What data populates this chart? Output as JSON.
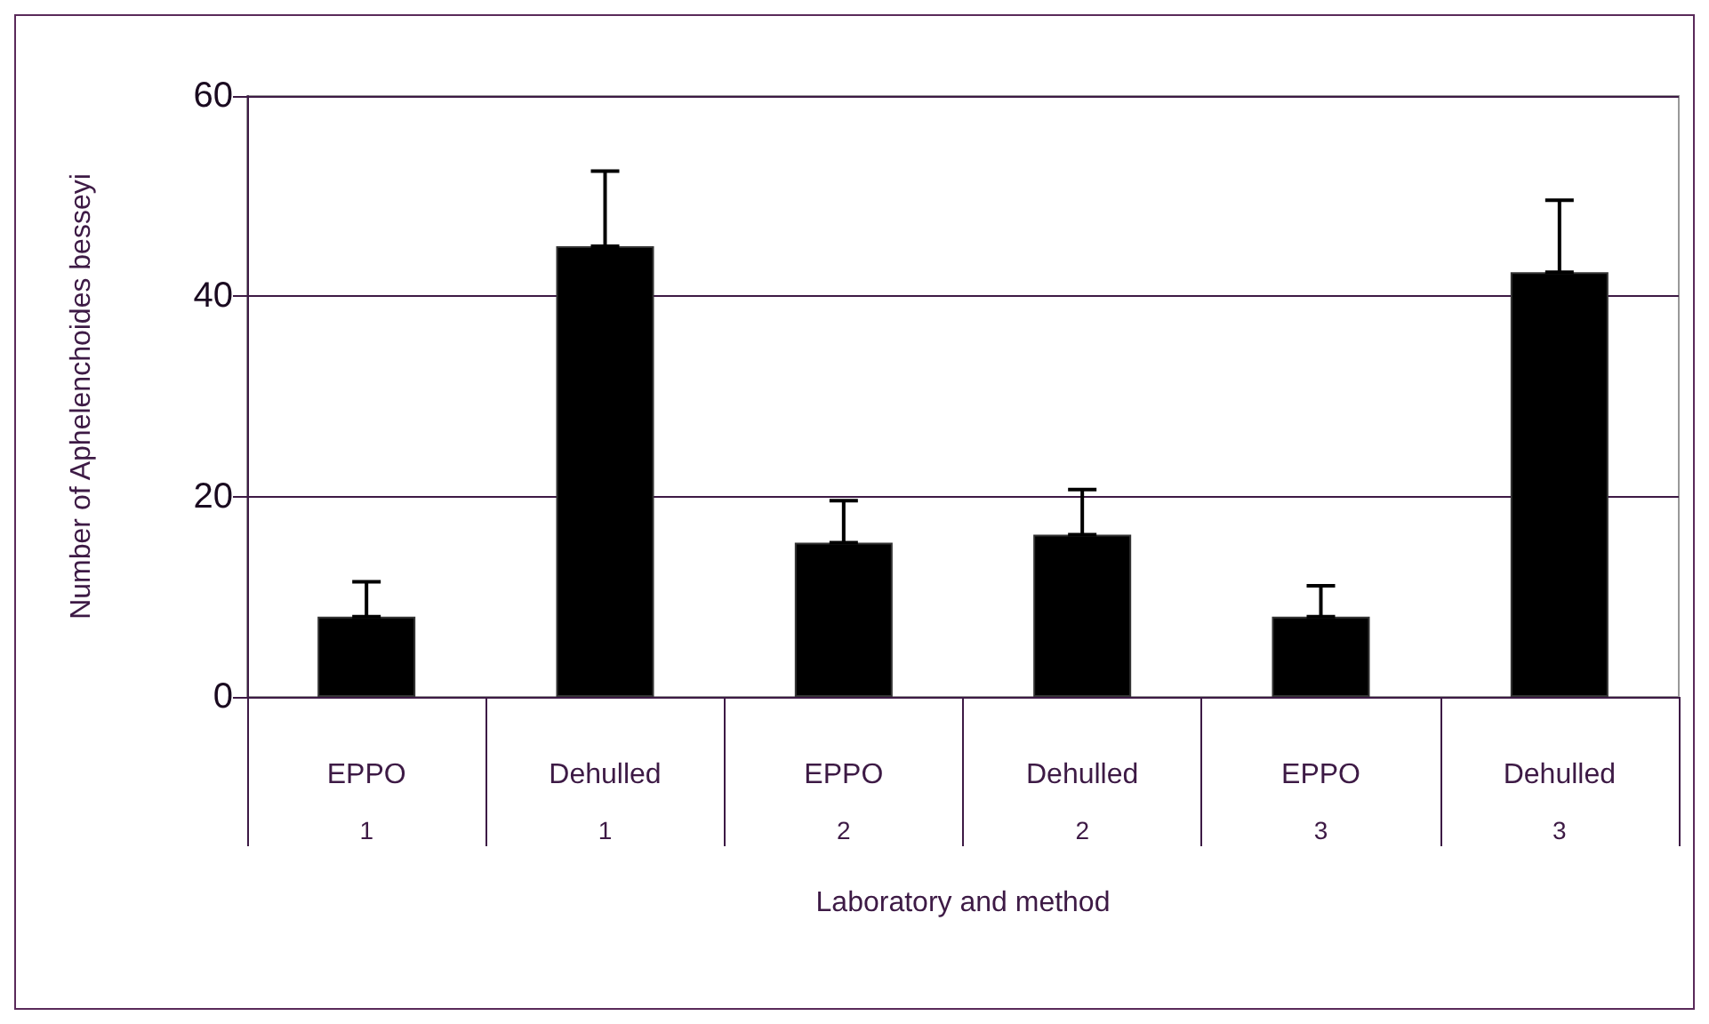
{
  "chart_data": {
    "type": "bar",
    "xlabel": "Laboratory and method",
    "ylabel": "Number of Aphelenchoides besseyi",
    "categories": [
      "EPPO\n1",
      "Dehulled\n1",
      "EPPO\n2",
      "Dehulled\n2",
      "EPPO\n3",
      "Dehulled\n3"
    ],
    "values": [
      8,
      45,
      15.4,
      16.2,
      8,
      42.4
    ],
    "color": "#000000",
    "errors": [
      [
        8,
        11.5
      ],
      [
        45,
        52.5
      ],
      [
        15.4,
        19.6
      ],
      [
        16.2,
        20.7
      ],
      [
        8,
        11.1
      ],
      [
        42.4,
        49.6
      ]
    ],
    "ylim": [
      0,
      60
    ],
    "yticks": [
      0,
      20,
      40,
      60
    ],
    "grid": "y"
  }
}
